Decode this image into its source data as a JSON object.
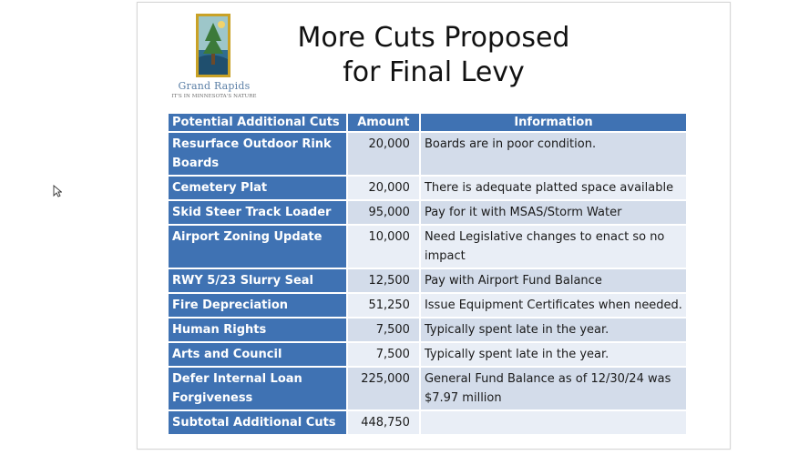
{
  "slide": {
    "logo": {
      "name": "Grand Rapids",
      "tagline": "IT'S IN MINNESOTA'S NATURE"
    },
    "title_line1": "More Cuts Proposed",
    "title_line2": "for Final Levy"
  },
  "table": {
    "headers": [
      "Potential Additional Cuts",
      "Amount",
      "Information"
    ],
    "rows": [
      {
        "name": "Resurface Outdoor Rink Boards",
        "amount": "20,000",
        "info": "Boards are in poor condition."
      },
      {
        "name": "Cemetery Plat",
        "amount": "20,000",
        "info": "There is adequate platted space available"
      },
      {
        "name": "Skid Steer Track Loader",
        "amount": "95,000",
        "info": "Pay for it with MSAS/Storm Water"
      },
      {
        "name": "Airport Zoning Update",
        "amount": "10,000",
        "info": "Need Legislative changes to enact so no impact"
      },
      {
        "name": "RWY 5/23 Slurry Seal",
        "amount": "12,500",
        "info": "Pay with Airport Fund Balance"
      },
      {
        "name": "Fire Depreciation",
        "amount": "51,250",
        "info": "Issue Equipment Certificates when needed."
      },
      {
        "name": "Human Rights",
        "amount": "7,500",
        "info": "Typically spent late in the year."
      },
      {
        "name": "Arts and Council",
        "amount": "7,500",
        "info": "Typically spent late in the year."
      },
      {
        "name": "Defer Internal Loan Forgiveness",
        "amount": "225,000",
        "info": "General Fund Balance as of 12/30/24 was $7.97 million"
      },
      {
        "name": "Subtotal Additional Cuts",
        "amount": "448,750",
        "info": ""
      }
    ]
  },
  "colors": {
    "header_blue": "#3f72b3",
    "row_dark": "#d3dcea",
    "row_light": "#e9eef6"
  }
}
